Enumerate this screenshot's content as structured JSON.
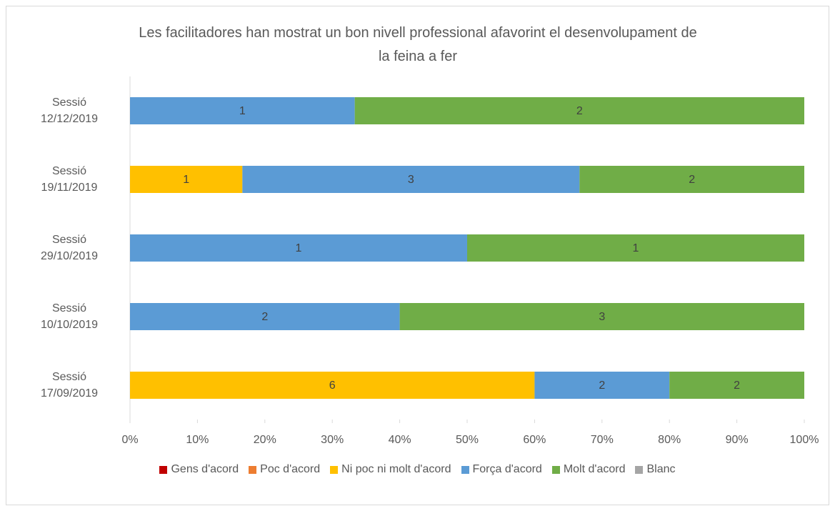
{
  "chart_data": {
    "type": "bar",
    "orientation": "horizontal",
    "stacking": "percent",
    "title": "Les facilitadores han mostrat un bon nivell professional afavorint el desenvolupament de la feina a fer",
    "categories": [
      "Sessió 12/12/2019",
      "Sessió 19/11/2019",
      "Sessió 29/10/2019",
      "Sessió 10/10/2019",
      "Sessió 17/09/2019"
    ],
    "series": [
      {
        "name": "Gens d'acord",
        "color": "#c00000",
        "values": [
          0,
          0,
          0,
          0,
          0
        ]
      },
      {
        "name": "Poc d'acord",
        "color": "#ed7d31",
        "values": [
          0,
          0,
          0,
          0,
          0
        ]
      },
      {
        "name": "Ni poc ni molt d'acord",
        "color": "#ffc000",
        "values": [
          0,
          1,
          0,
          0,
          6
        ]
      },
      {
        "name": "Força d'acord",
        "color": "#5b9bd5",
        "values": [
          1,
          3,
          1,
          2,
          2
        ]
      },
      {
        "name": "Molt d'acord",
        "color": "#70ad47",
        "values": [
          2,
          2,
          1,
          3,
          2
        ]
      },
      {
        "name": "Blanc",
        "color": "#a5a5a5",
        "values": [
          0,
          0,
          0,
          0,
          0
        ]
      }
    ],
    "xlim": [
      0,
      100
    ],
    "xticks": [
      {
        "value": 0,
        "label": "0%"
      },
      {
        "value": 10,
        "label": "10%"
      },
      {
        "value": 20,
        "label": "20%"
      },
      {
        "value": 30,
        "label": "30%"
      },
      {
        "value": 40,
        "label": "40%"
      },
      {
        "value": 50,
        "label": "50%"
      },
      {
        "value": 60,
        "label": "60%"
      },
      {
        "value": 70,
        "label": "70%"
      },
      {
        "value": 80,
        "label": "80%"
      },
      {
        "value": 90,
        "label": "90%"
      },
      {
        "value": 100,
        "label": "100%"
      }
    ],
    "grid": false,
    "legend": "bottom"
  }
}
